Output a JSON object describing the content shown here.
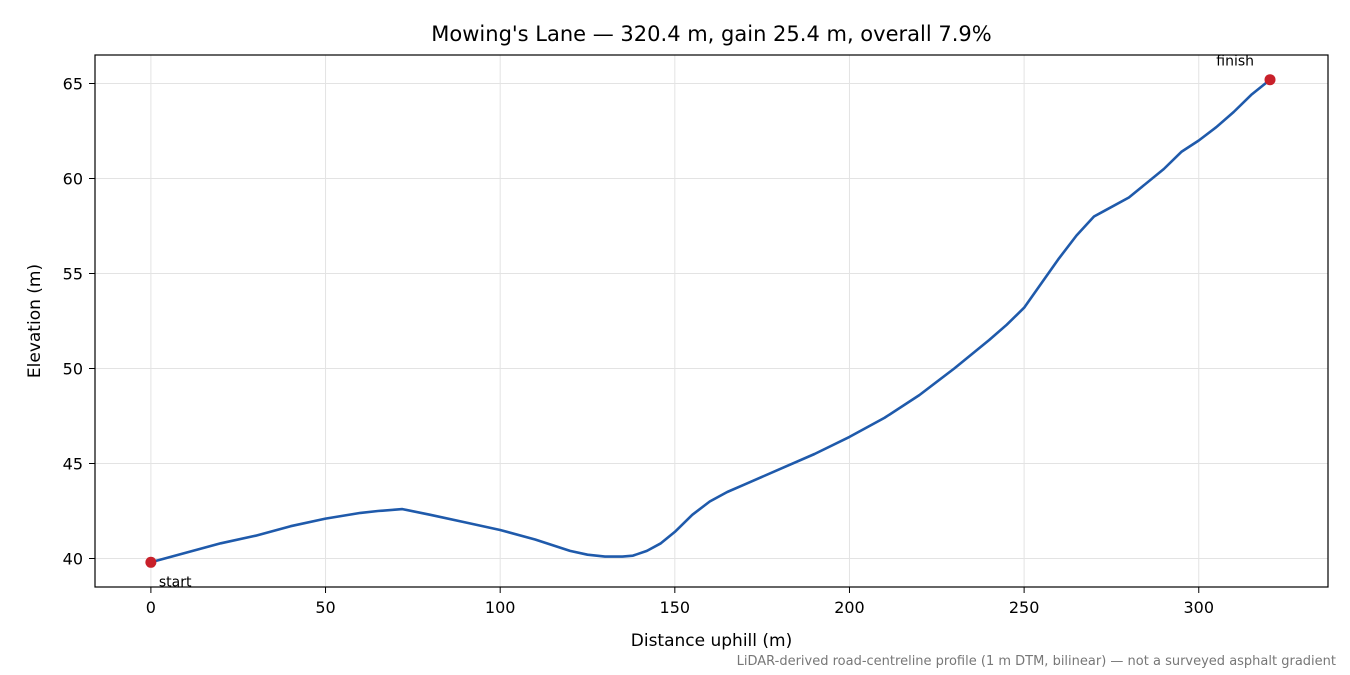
{
  "chart_data": {
    "type": "line",
    "title": "Mowing's Lane — 320.4 m, gain 25.4 m, overall 7.9%",
    "xlabel": "Distance uphill (m)",
    "ylabel": "Elevation (m)",
    "xlim": [
      -16,
      337
    ],
    "ylim": [
      38.5,
      66.5
    ],
    "xticks": [
      0,
      50,
      100,
      150,
      200,
      250,
      300
    ],
    "yticks": [
      40,
      45,
      50,
      55,
      60,
      65
    ],
    "grid": true,
    "series": [
      {
        "color": "#1f5aab",
        "x": [
          0,
          10,
          20,
          30,
          40,
          50,
          60,
          65,
          72,
          80,
          90,
          100,
          110,
          120,
          125,
          130,
          135,
          138,
          142,
          146,
          150,
          155,
          160,
          165,
          170,
          180,
          190,
          200,
          210,
          220,
          230,
          240,
          245,
          250,
          255,
          260,
          265,
          270,
          273,
          280,
          290,
          295,
          300,
          305,
          310,
          315,
          320.4
        ],
        "y": [
          39.8,
          40.3,
          40.8,
          41.2,
          41.7,
          42.1,
          42.4,
          42.5,
          42.6,
          42.3,
          41.9,
          41.5,
          41.0,
          40.4,
          40.2,
          40.1,
          40.1,
          40.15,
          40.4,
          40.8,
          41.4,
          42.3,
          43.0,
          43.5,
          43.9,
          44.7,
          45.5,
          46.4,
          47.4,
          48.6,
          50.0,
          51.5,
          52.3,
          53.2,
          54.5,
          55.8,
          57.0,
          58.0,
          58.3,
          59.0,
          60.5,
          61.4,
          62.0,
          62.7,
          63.5,
          64.4,
          65.2
        ]
      }
    ],
    "annotations": [
      {
        "text": "start",
        "x": 0,
        "y": 39.8,
        "marker_color": "#c8202a"
      },
      {
        "text": "finish",
        "x": 320.4,
        "y": 65.2,
        "marker_color": "#c8202a"
      }
    ],
    "footnote": "LiDAR-derived road-centreline profile (1 m DTM, bilinear) — not a surveyed asphalt gradient",
    "footnote_color": "#777777"
  }
}
